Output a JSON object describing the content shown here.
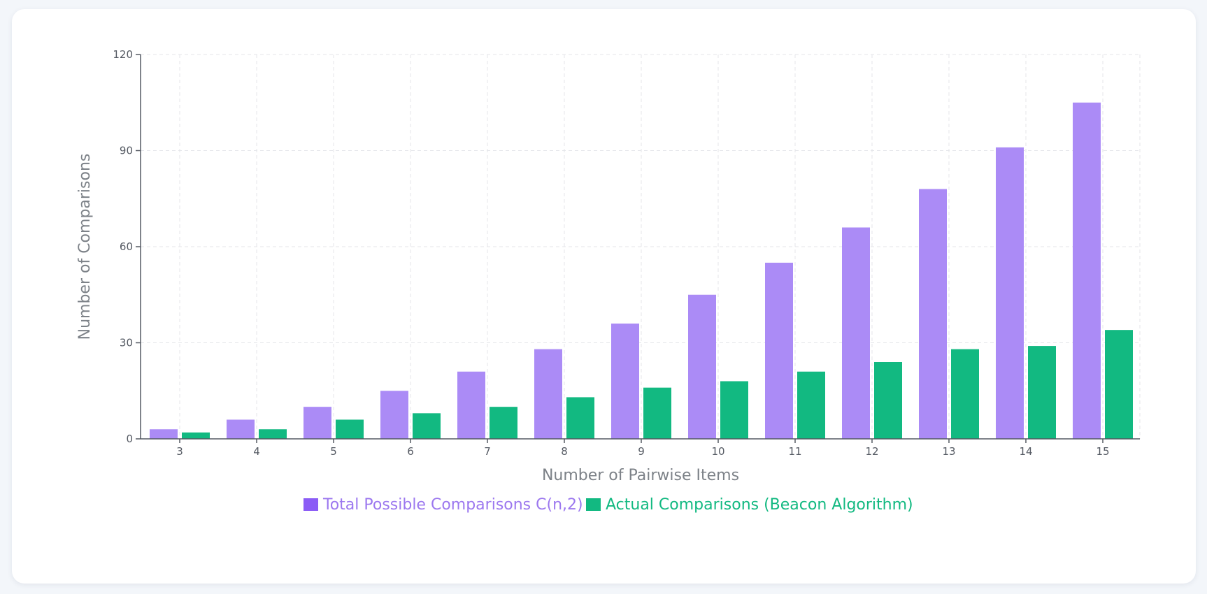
{
  "chart_data": {
    "type": "bar",
    "categories": [
      "3",
      "4",
      "5",
      "6",
      "7",
      "8",
      "9",
      "10",
      "11",
      "12",
      "13",
      "14",
      "15"
    ],
    "series": [
      {
        "name": "Total Possible Comparisons C(n,2)",
        "values": [
          3,
          6,
          10,
          15,
          21,
          28,
          36,
          45,
          55,
          66,
          78,
          91,
          105
        ],
        "color": "#ab8bf6",
        "legend_swatch_color": "#8b5cf6",
        "legend_text_color": "#9c78ef"
      },
      {
        "name": "Actual Comparisons (Beacon Algorithm)",
        "values": [
          2,
          3,
          6,
          8,
          10,
          13,
          16,
          18,
          21,
          24,
          28,
          29,
          34
        ],
        "color": "#12b981",
        "legend_swatch_color": "#12b981",
        "legend_text_color": "#12b981"
      }
    ],
    "xlabel": "Number of Pairwise Items",
    "ylabel": "Number of Comparisons",
    "ylim": [
      0,
      120
    ],
    "yticks": [
      "0",
      "30",
      "60",
      "90",
      "120"
    ],
    "grid": true,
    "legend_position": "bottom-center"
  }
}
